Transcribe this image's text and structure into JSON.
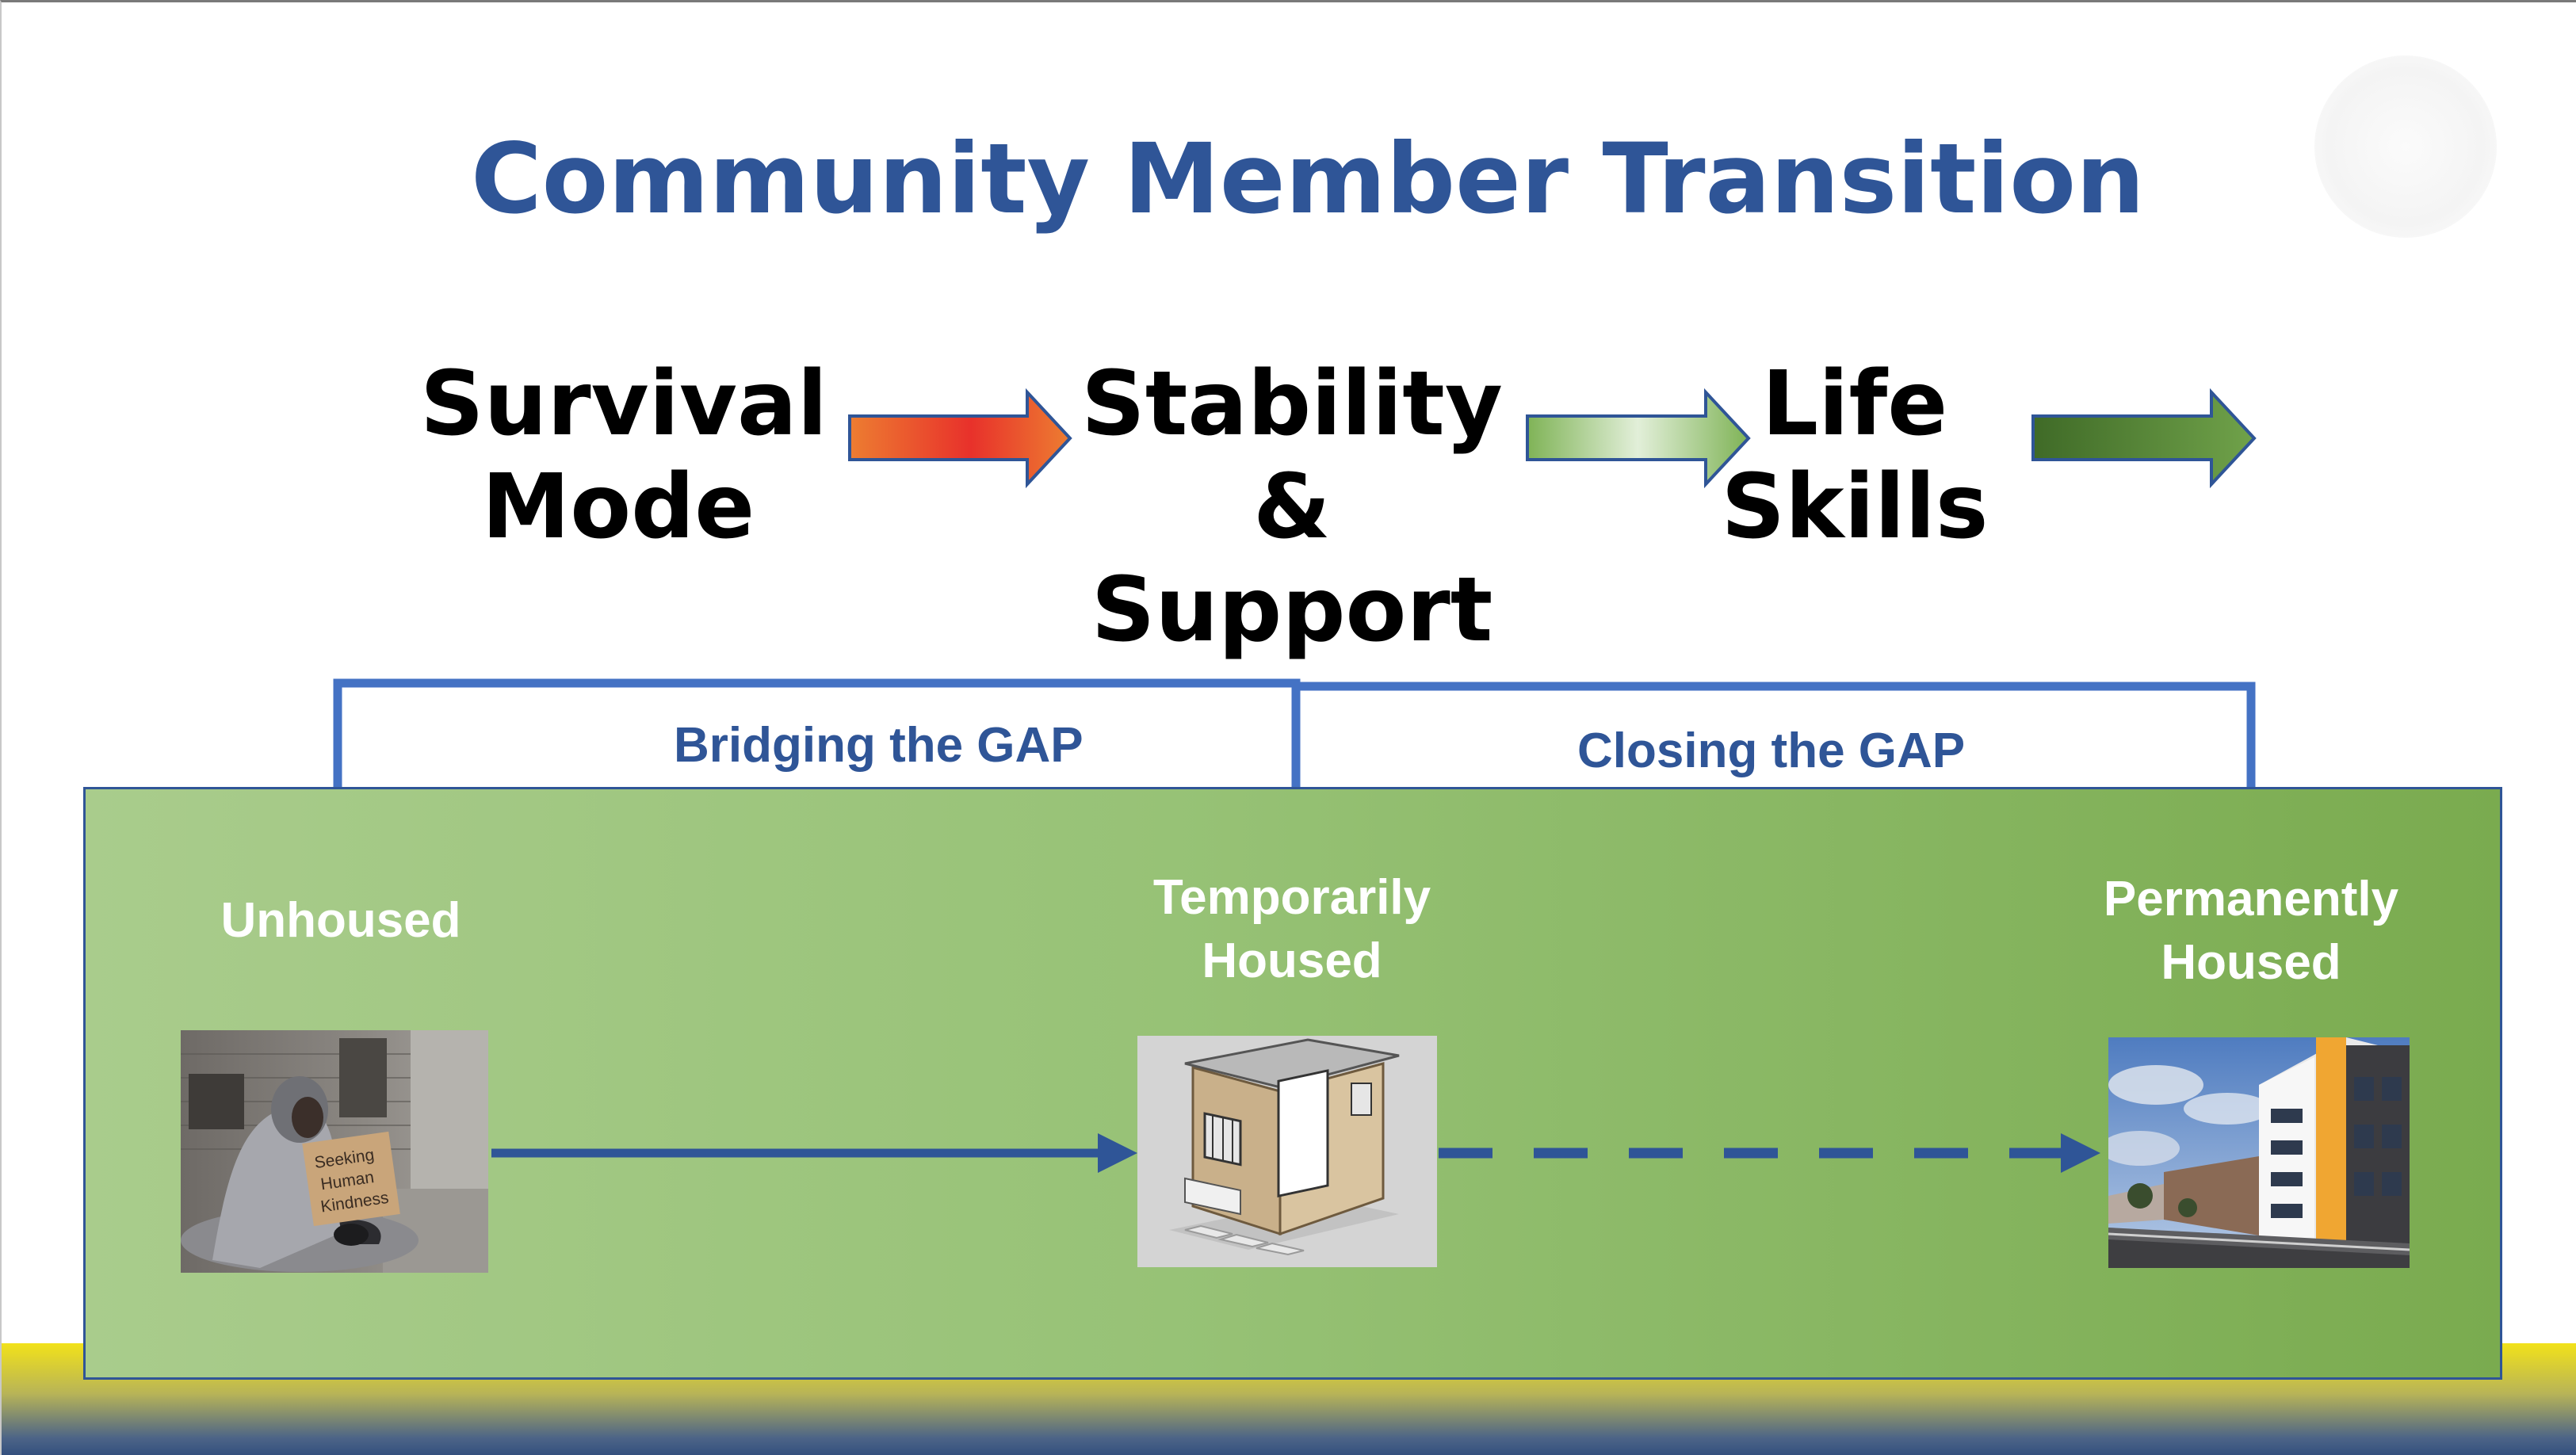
{
  "title": "Community Member Transition",
  "stages": [
    {
      "lines": [
        "Survival",
        "Mode"
      ]
    },
    {
      "lines": [
        "Stability",
        "&",
        "Support"
      ]
    },
    {
      "lines": [
        "Life",
        "Skills"
      ]
    }
  ],
  "gaps": {
    "bridging": "Bridging the GAP",
    "closing": "Closing the GAP"
  },
  "housing": [
    {
      "lines": [
        "Unhoused"
      ]
    },
    {
      "lines": [
        "Temporarily",
        "Housed"
      ]
    },
    {
      "lines": [
        "Permanently",
        "Housed"
      ]
    }
  ],
  "sign_text": [
    "Seeking",
    "Human",
    "Kindness"
  ],
  "colors": {
    "title": "#2f5597",
    "connector": "#4472c4",
    "arrow_red": "#e8312b",
    "arrow_orange": "#ed7d31",
    "arrow_light_green": "#a9d18e",
    "arrow_dark_green": "#548235",
    "panel_green": "#97c276",
    "band_yellow": "#f2e21a",
    "band_blue": "#34507e"
  },
  "icons": {
    "unhoused": "person-with-sign-image",
    "temporary": "tiny-shelter-image",
    "permanent": "apartment-building-image"
  }
}
